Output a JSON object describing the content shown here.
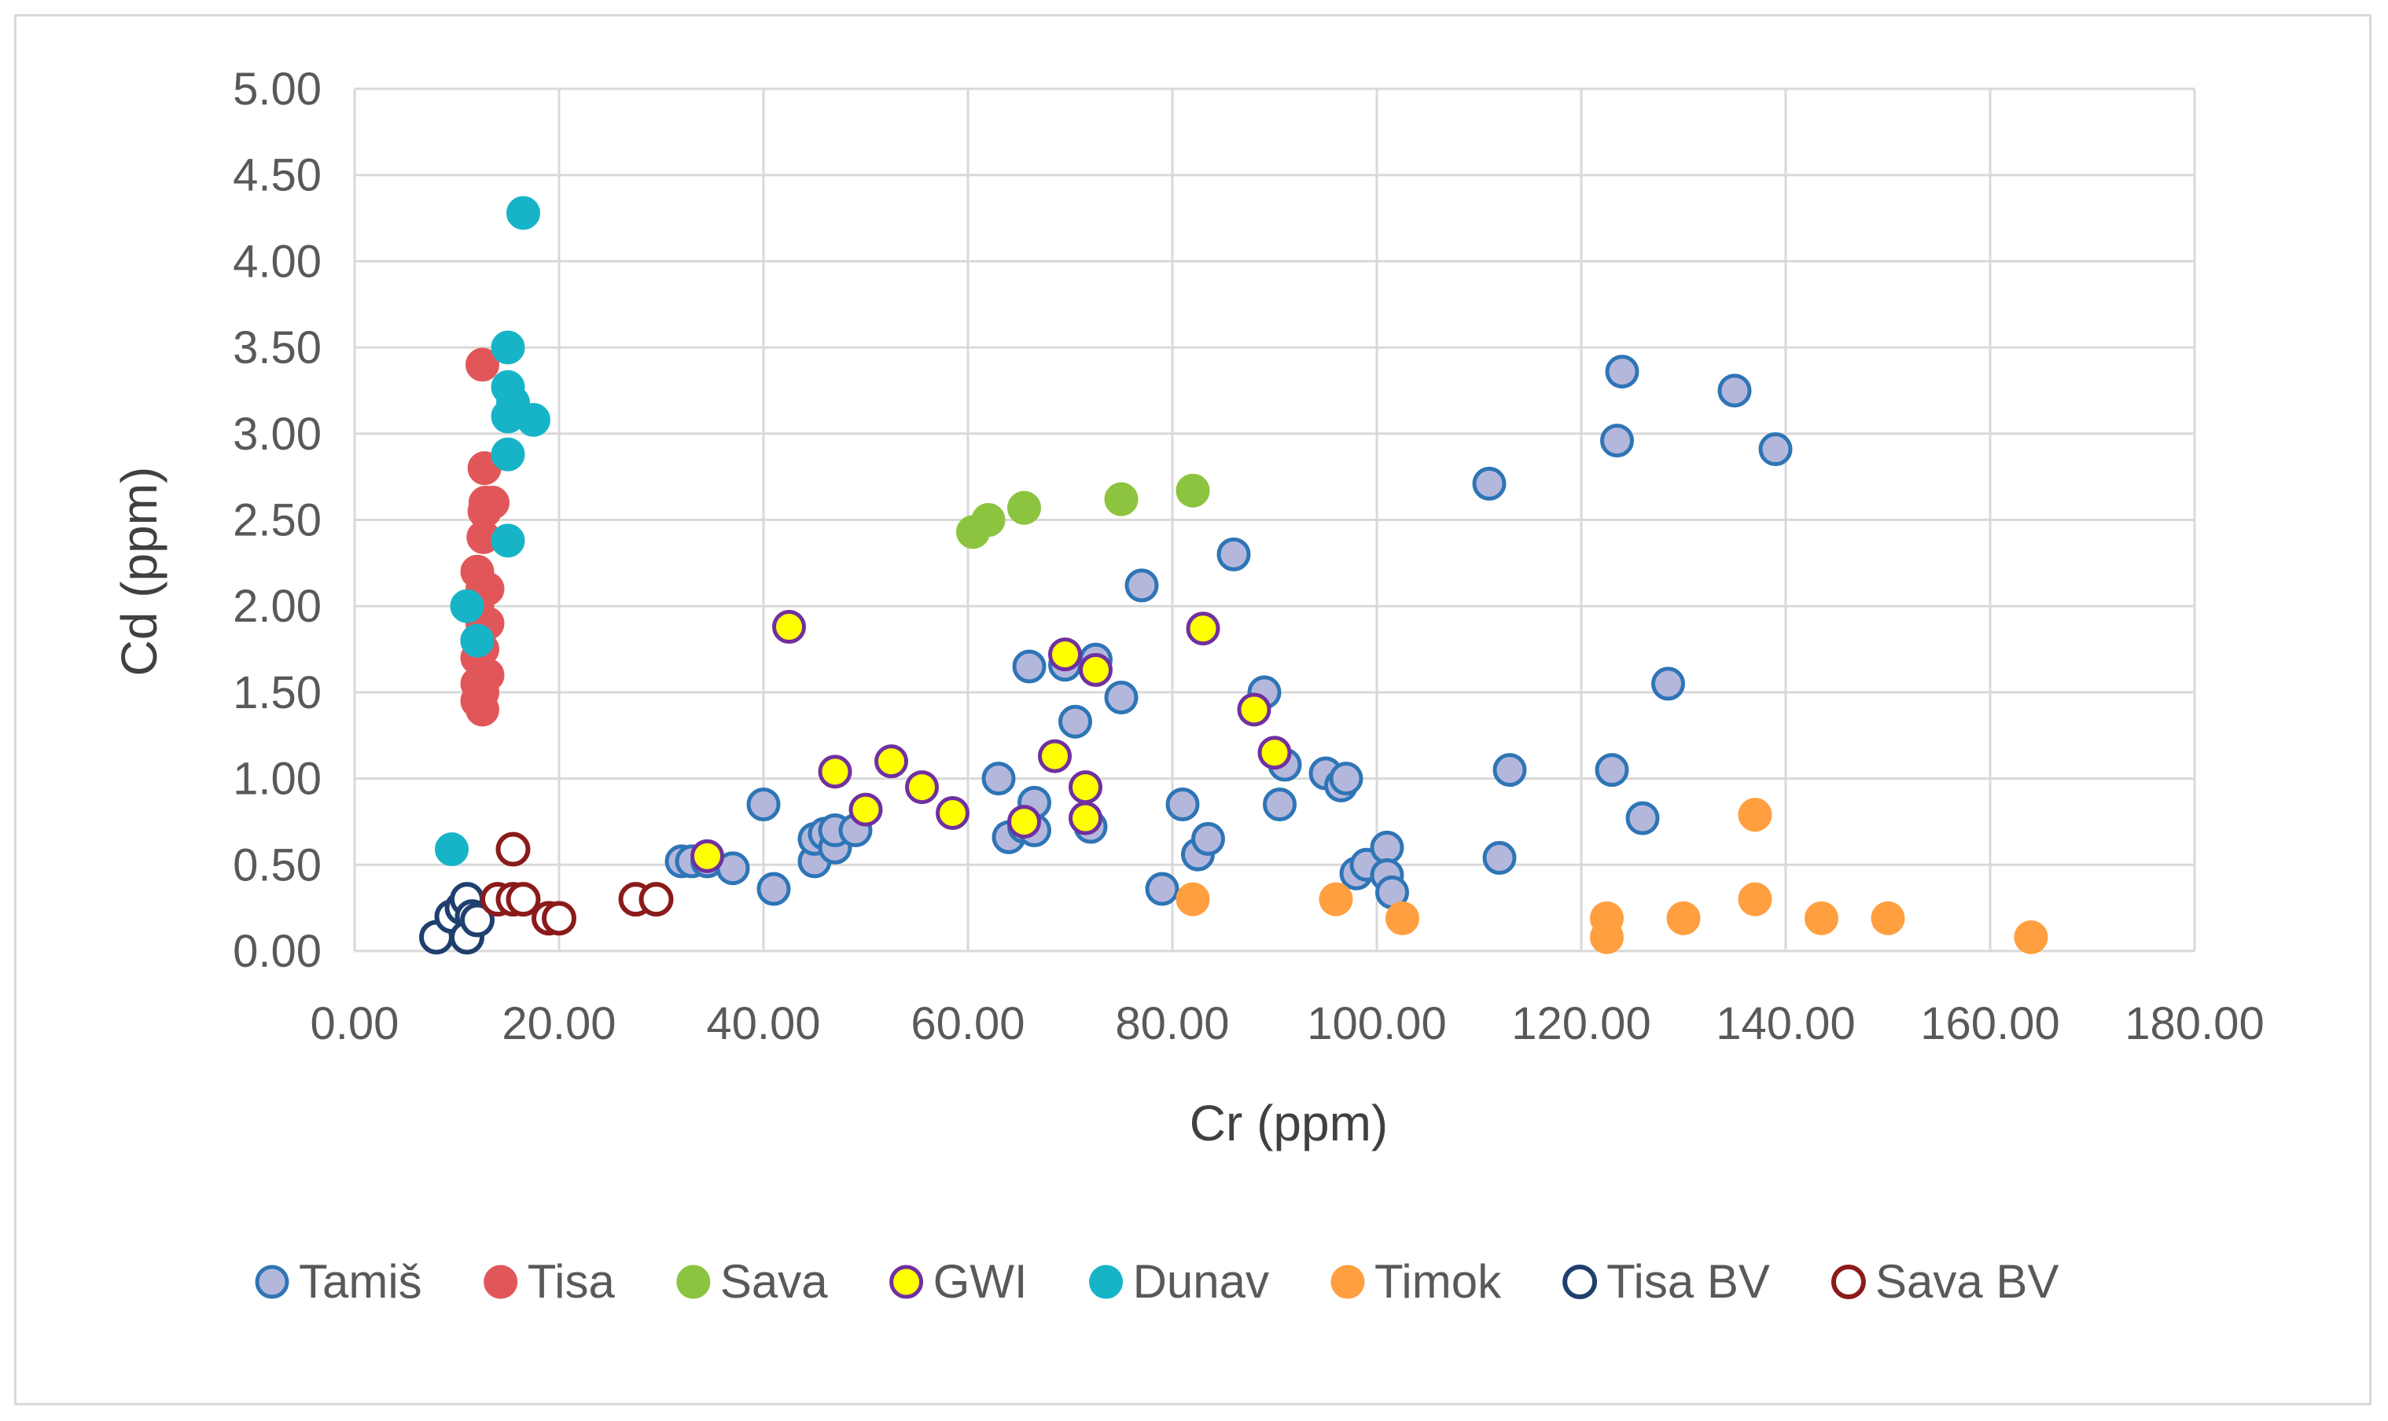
{
  "chart_data": {
    "type": "scatter",
    "title": "",
    "xlabel": "Cr (ppm)",
    "ylabel": "Cd (ppm)",
    "xlim": [
      0,
      180
    ],
    "ylim": [
      0,
      5
    ],
    "xticks": [
      "0.00",
      "20.00",
      "40.00",
      "60.00",
      "80.00",
      "100.00",
      "120.00",
      "140.00",
      "160.00",
      "180.00"
    ],
    "yticks": [
      "0.00",
      "0.50",
      "1.00",
      "1.50",
      "2.00",
      "2.50",
      "3.00",
      "3.50",
      "4.00",
      "4.50",
      "5.00"
    ],
    "grid": true,
    "legend_position": "bottom",
    "series": [
      {
        "name": "Tamiš",
        "fill": "#b4b7dc",
        "stroke": "#2e75b6",
        "hollow": false,
        "points": [
          [
            32,
            0.52
          ],
          [
            33,
            0.52
          ],
          [
            34.5,
            0.52
          ],
          [
            37,
            0.48
          ],
          [
            40,
            0.85
          ],
          [
            41,
            0.36
          ],
          [
            45,
            0.52
          ],
          [
            45,
            0.65
          ],
          [
            46,
            0.68
          ],
          [
            47,
            0.6
          ],
          [
            47,
            0.7
          ],
          [
            49,
            0.7
          ],
          [
            63,
            1.0
          ],
          [
            64,
            0.66
          ],
          [
            65.5,
            0.72
          ],
          [
            66,
            1.65
          ],
          [
            66.5,
            0.86
          ],
          [
            66.5,
            0.7
          ],
          [
            69.5,
            1.66
          ],
          [
            70.5,
            1.33
          ],
          [
            72,
            0.72
          ],
          [
            72.5,
            1.69
          ],
          [
            75,
            1.47
          ],
          [
            77,
            2.12
          ],
          [
            79,
            0.36
          ],
          [
            81,
            0.85
          ],
          [
            82.5,
            0.56
          ],
          [
            83.5,
            0.65
          ],
          [
            86,
            2.3
          ],
          [
            89,
            1.5
          ],
          [
            90.5,
            0.85
          ],
          [
            91,
            1.08
          ],
          [
            95,
            1.03
          ],
          [
            96.5,
            0.96
          ],
          [
            97,
            1.0
          ],
          [
            98,
            0.45
          ],
          [
            99,
            0.5
          ],
          [
            101,
            0.6
          ],
          [
            101,
            0.44
          ],
          [
            101.5,
            0.34
          ],
          [
            111,
            2.71
          ],
          [
            112,
            0.54
          ],
          [
            113,
            1.05
          ],
          [
            123,
            1.05
          ],
          [
            123.5,
            2.96
          ],
          [
            124,
            3.36
          ],
          [
            126,
            0.77
          ],
          [
            128.5,
            1.55
          ],
          [
            135,
            3.25
          ],
          [
            139,
            2.91
          ]
        ]
      },
      {
        "name": "Tisa",
        "fill": "#e15759",
        "stroke": "#e15759",
        "hollow": false,
        "points": [
          [
            12.5,
            3.4
          ],
          [
            12.7,
            2.8
          ],
          [
            12.8,
            2.6
          ],
          [
            13.5,
            2.6
          ],
          [
            12.6,
            2.4
          ],
          [
            12.7,
            2.55
          ],
          [
            12.0,
            2.2
          ],
          [
            12.5,
            2.1
          ],
          [
            13.0,
            2.1
          ],
          [
            12.0,
            2.0
          ],
          [
            12.5,
            1.9
          ],
          [
            13.0,
            1.9
          ],
          [
            12.0,
            1.8
          ],
          [
            12.5,
            1.75
          ],
          [
            12.0,
            1.7
          ],
          [
            13.0,
            1.6
          ],
          [
            12.0,
            1.55
          ],
          [
            12.5,
            1.5
          ],
          [
            12.0,
            1.45
          ],
          [
            12.5,
            1.4
          ]
        ]
      },
      {
        "name": "Sava",
        "fill": "#8cc43f",
        "stroke": "#8cc43f",
        "hollow": false,
        "points": [
          [
            60.5,
            2.43
          ],
          [
            62,
            2.5
          ],
          [
            65.5,
            2.57
          ],
          [
            75,
            2.62
          ],
          [
            82,
            2.67
          ]
        ]
      },
      {
        "name": "GWI",
        "fill": "#ffff00",
        "stroke": "#7030a0",
        "hollow": false,
        "points": [
          [
            34.5,
            0.55
          ],
          [
            42.5,
            1.88
          ],
          [
            47,
            1.04
          ],
          [
            50,
            0.82
          ],
          [
            52.5,
            1.1
          ],
          [
            55.5,
            0.95
          ],
          [
            58.5,
            0.8
          ],
          [
            65.5,
            0.75
          ],
          [
            68.5,
            1.13
          ],
          [
            69.5,
            1.72
          ],
          [
            71.5,
            0.77
          ],
          [
            71.5,
            0.95
          ],
          [
            72.5,
            1.63
          ],
          [
            83,
            1.87
          ],
          [
            88,
            1.4
          ],
          [
            90,
            1.15
          ]
        ]
      },
      {
        "name": "Dunav",
        "fill": "#17b4c8",
        "stroke": "#17b4c8",
        "hollow": false,
        "points": [
          [
            16.5,
            4.28
          ],
          [
            15,
            3.5
          ],
          [
            15,
            3.27
          ],
          [
            15.5,
            3.18
          ],
          [
            15,
            3.1
          ],
          [
            17.5,
            3.08
          ],
          [
            15,
            2.88
          ],
          [
            15,
            2.38
          ],
          [
            11,
            2.0
          ],
          [
            12,
            1.8
          ],
          [
            9.5,
            0.59
          ]
        ]
      },
      {
        "name": "Timok",
        "fill": "#ff9f40",
        "stroke": "#ff9f40",
        "hollow": false,
        "points": [
          [
            82,
            0.3
          ],
          [
            96,
            0.3
          ],
          [
            102.5,
            0.19
          ],
          [
            122.5,
            0.19
          ],
          [
            122.5,
            0.08
          ],
          [
            130,
            0.19
          ],
          [
            137,
            0.79
          ],
          [
            137,
            0.3
          ],
          [
            143.5,
            0.19
          ],
          [
            150,
            0.19
          ],
          [
            164,
            0.08
          ]
        ]
      },
      {
        "name": "Tisa BV",
        "fill": "#ffffff",
        "stroke": "#1f3f6e",
        "hollow": true,
        "points": [
          [
            8,
            0.08
          ],
          [
            9.5,
            0.2
          ],
          [
            10.5,
            0.25
          ],
          [
            11,
            0.3
          ],
          [
            11.5,
            0.2
          ],
          [
            11,
            0.08
          ],
          [
            12,
            0.18
          ]
        ]
      },
      {
        "name": "Sava BV",
        "fill": "#ffffff",
        "stroke": "#8b1a1a",
        "hollow": true,
        "points": [
          [
            14,
            0.3
          ],
          [
            15.5,
            0.59
          ],
          [
            15.5,
            0.3
          ],
          [
            16.5,
            0.3
          ],
          [
            19,
            0.19
          ],
          [
            20,
            0.19
          ],
          [
            27.5,
            0.3
          ],
          [
            29.5,
            0.3
          ]
        ]
      }
    ]
  }
}
